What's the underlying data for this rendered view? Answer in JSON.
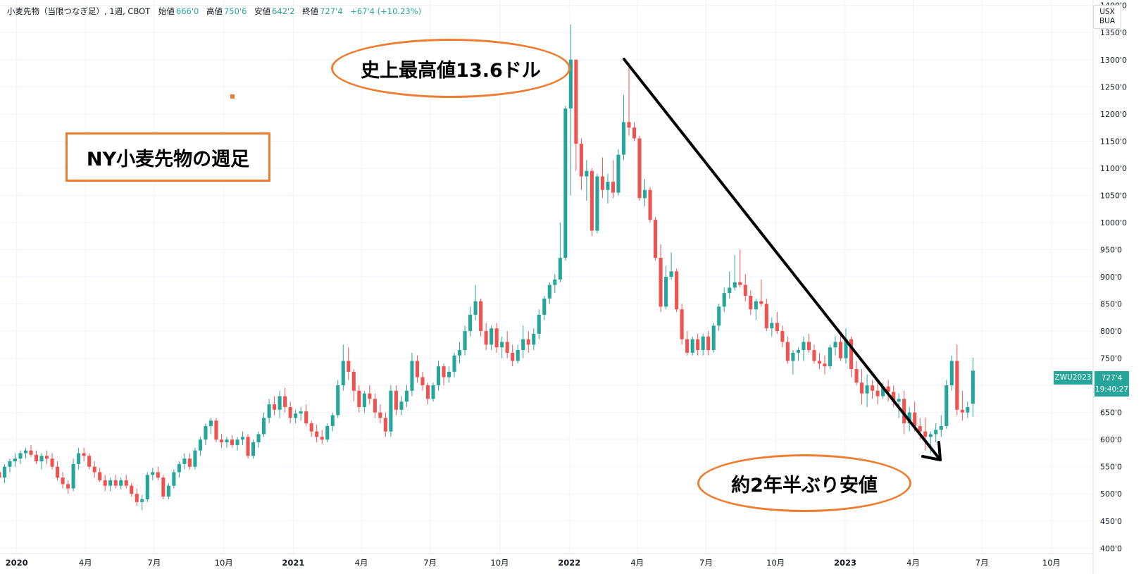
{
  "legend": {
    "title": "小麦先物（当限つなぎ足）, 1週, CBOT",
    "open_label": "始値",
    "open_value": "666'0",
    "high_label": "高値",
    "high_value": "750'6",
    "low_label": "安値",
    "low_value": "642'2",
    "close_label": "終値",
    "close_value": "727'4",
    "change": "+67'4 (+10.23%)"
  },
  "currency": {
    "line1": "USX",
    "line2": "BUA"
  },
  "annotations": {
    "box_title": "NY小麦先物の週足",
    "peak_label": "史上最高値13.6ドル",
    "low_label": "約2年半ぶり安値"
  },
  "price_tag": {
    "symbol": "ZWU2023",
    "price": "727'4",
    "countdown": "19:40:27"
  },
  "colors": {
    "up": "#26a69a",
    "down": "#ef5350",
    "accent": "#ed7d31",
    "grid": "#f0f3fa"
  },
  "chart_data": {
    "type": "candlestick",
    "y_axis": {
      "range": [
        390,
        1410
      ],
      "ticks": [
        400,
        450,
        500,
        550,
        600,
        650,
        700,
        750,
        800,
        850,
        900,
        950,
        1000,
        1050,
        1100,
        1150,
        1200,
        1250,
        1300,
        1350,
        1400
      ],
      "tick_labels": [
        "400'0",
        "450'0",
        "500'0",
        "550'0",
        "600'0",
        "650'0",
        "700'0",
        "750'0",
        "800'0",
        "850'0",
        "900'0",
        "950'0",
        "1000'0",
        "1050'0",
        "1100'0",
        "1150'0",
        "1200'0",
        "1250'0",
        "1300'0",
        "1350'0",
        "1400'0"
      ]
    },
    "x_axis": {
      "range": [
        "2019-12-10",
        "2023-11-25"
      ],
      "ticks": [
        {
          "date": "2020-01-01",
          "label": "2020",
          "bold": true
        },
        {
          "date": "2020-04-01",
          "label": "4月"
        },
        {
          "date": "2020-07-01",
          "label": "7月"
        },
        {
          "date": "2020-10-01",
          "label": "10月"
        },
        {
          "date": "2021-01-01",
          "label": "2021",
          "bold": true
        },
        {
          "date": "2021-04-01",
          "label": "4月"
        },
        {
          "date": "2021-07-01",
          "label": "7月"
        },
        {
          "date": "2021-10-01",
          "label": "10月"
        },
        {
          "date": "2022-01-01",
          "label": "2022",
          "bold": true
        },
        {
          "date": "2022-04-01",
          "label": "4月"
        },
        {
          "date": "2022-07-01",
          "label": "7月"
        },
        {
          "date": "2022-10-01",
          "label": "10月"
        },
        {
          "date": "2023-01-01",
          "label": "2023",
          "bold": true
        },
        {
          "date": "2023-04-01",
          "label": "4月"
        },
        {
          "date": "2023-07-01",
          "label": "7月"
        },
        {
          "date": "2023-10-01",
          "label": "10月"
        }
      ]
    },
    "first_week": "2019-12-09",
    "candles": [
      [
        540,
        555,
        521,
        530
      ],
      [
        530,
        555,
        520,
        550
      ],
      [
        550,
        565,
        540,
        560
      ],
      [
        560,
        575,
        550,
        565
      ],
      [
        565,
        580,
        555,
        575
      ],
      [
        575,
        585,
        565,
        580
      ],
      [
        580,
        590,
        568,
        572
      ],
      [
        572,
        580,
        555,
        560
      ],
      [
        560,
        575,
        545,
        570
      ],
      [
        570,
        580,
        555,
        565
      ],
      [
        565,
        575,
        545,
        550
      ],
      [
        550,
        560,
        525,
        530
      ],
      [
        530,
        540,
        510,
        518
      ],
      [
        518,
        525,
        500,
        510
      ],
      [
        510,
        565,
        505,
        555
      ],
      [
        555,
        585,
        545,
        575
      ],
      [
        575,
        585,
        560,
        570
      ],
      [
        570,
        575,
        545,
        550
      ],
      [
        550,
        560,
        530,
        540
      ],
      [
        540,
        548,
        522,
        525
      ],
      [
        525,
        535,
        505,
        515
      ],
      [
        515,
        530,
        505,
        525
      ],
      [
        525,
        535,
        510,
        515
      ],
      [
        515,
        530,
        508,
        525
      ],
      [
        525,
        535,
        510,
        515
      ],
      [
        515,
        520,
        495,
        500
      ],
      [
        500,
        510,
        478,
        485
      ],
      [
        485,
        498,
        470,
        490
      ],
      [
        490,
        540,
        485,
        535
      ],
      [
        535,
        548,
        525,
        540
      ],
      [
        540,
        550,
        525,
        530
      ],
      [
        530,
        535,
        490,
        495
      ],
      [
        495,
        520,
        490,
        515
      ],
      [
        515,
        545,
        510,
        540
      ],
      [
        540,
        560,
        530,
        555
      ],
      [
        555,
        575,
        545,
        565
      ],
      [
        565,
        575,
        545,
        550
      ],
      [
        550,
        585,
        545,
        580
      ],
      [
        580,
        605,
        570,
        600
      ],
      [
        600,
        630,
        590,
        625
      ],
      [
        625,
        640,
        610,
        635
      ],
      [
        635,
        640,
        595,
        600
      ],
      [
        600,
        610,
        585,
        595
      ],
      [
        595,
        605,
        585,
        600
      ],
      [
        600,
        608,
        585,
        590
      ],
      [
        590,
        605,
        580,
        600
      ],
      [
        600,
        615,
        590,
        605
      ],
      [
        605,
        610,
        565,
        570
      ],
      [
        570,
        600,
        565,
        595
      ],
      [
        595,
        615,
        585,
        610
      ],
      [
        610,
        650,
        605,
        640
      ],
      [
        640,
        675,
        630,
        665
      ],
      [
        665,
        680,
        645,
        655
      ],
      [
        655,
        690,
        640,
        680
      ],
      [
        680,
        695,
        650,
        660
      ],
      [
        660,
        670,
        630,
        640
      ],
      [
        640,
        655,
        630,
        648
      ],
      [
        648,
        660,
        635,
        652
      ],
      [
        652,
        665,
        625,
        630
      ],
      [
        630,
        635,
        605,
        615
      ],
      [
        615,
        628,
        595,
        605
      ],
      [
        605,
        618,
        592,
        600
      ],
      [
        600,
        630,
        595,
        625
      ],
      [
        625,
        650,
        615,
        645
      ],
      [
        645,
        710,
        640,
        700
      ],
      [
        700,
        775,
        690,
        745
      ],
      [
        745,
        770,
        710,
        725
      ],
      [
        725,
        730,
        670,
        690
      ],
      [
        690,
        700,
        650,
        660
      ],
      [
        660,
        690,
        650,
        685
      ],
      [
        685,
        700,
        665,
        675
      ],
      [
        675,
        685,
        640,
        650
      ],
      [
        650,
        665,
        630,
        640
      ],
      [
        640,
        650,
        605,
        615
      ],
      [
        615,
        700,
        605,
        690
      ],
      [
        690,
        700,
        645,
        655
      ],
      [
        655,
        680,
        645,
        670
      ],
      [
        670,
        700,
        660,
        690
      ],
      [
        690,
        760,
        680,
        745
      ],
      [
        745,
        755,
        705,
        715
      ],
      [
        715,
        725,
        690,
        700
      ],
      [
        700,
        705,
        665,
        675
      ],
      [
        675,
        705,
        670,
        700
      ],
      [
        700,
        745,
        690,
        735
      ],
      [
        735,
        740,
        700,
        715
      ],
      [
        715,
        735,
        705,
        725
      ],
      [
        725,
        760,
        715,
        755
      ],
      [
        755,
        780,
        740,
        765
      ],
      [
        765,
        810,
        755,
        800
      ],
      [
        800,
        845,
        790,
        830
      ],
      [
        830,
        885,
        820,
        855
      ],
      [
        855,
        860,
        790,
        800
      ],
      [
        800,
        815,
        765,
        775
      ],
      [
        775,
        810,
        765,
        805
      ],
      [
        805,
        815,
        760,
        770
      ],
      [
        770,
        790,
        750,
        780
      ],
      [
        780,
        800,
        750,
        760
      ],
      [
        760,
        775,
        735,
        745
      ],
      [
        745,
        775,
        740,
        765
      ],
      [
        765,
        810,
        750,
        785
      ],
      [
        785,
        800,
        760,
        775
      ],
      [
        775,
        805,
        765,
        795
      ],
      [
        795,
        840,
        785,
        830
      ],
      [
        830,
        865,
        820,
        860
      ],
      [
        860,
        890,
        850,
        885
      ],
      [
        885,
        905,
        870,
        895
      ],
      [
        895,
        1000,
        890,
        935
      ],
      [
        935,
        1215,
        930,
        1210
      ],
      [
        1210,
        1365,
        1050,
        1300
      ],
      [
        1300,
        1295,
        1095,
        1145
      ],
      [
        1145,
        1155,
        1060,
        1085
      ],
      [
        1085,
        1115,
        1040,
        1095
      ],
      [
        1095,
        1100,
        975,
        985
      ],
      [
        985,
        1090,
        980,
        1085
      ],
      [
        1085,
        1120,
        1045,
        1060
      ],
      [
        1060,
        1090,
        1035,
        1075
      ],
      [
        1075,
        1115,
        1045,
        1055
      ],
      [
        1055,
        1135,
        1050,
        1125
      ],
      [
        1125,
        1235,
        1115,
        1185
      ],
      [
        1185,
        1285,
        1160,
        1175
      ],
      [
        1175,
        1185,
        1150,
        1155
      ],
      [
        1155,
        1160,
        1040,
        1045
      ],
      [
        1045,
        1080,
        1030,
        1060
      ],
      [
        1060,
        1065,
        1000,
        1005
      ],
      [
        1005,
        1010,
        930,
        935
      ],
      [
        935,
        960,
        835,
        845
      ],
      [
        845,
        920,
        840,
        900
      ],
      [
        900,
        945,
        895,
        910
      ],
      [
        910,
        915,
        835,
        840
      ],
      [
        840,
        850,
        775,
        785
      ],
      [
        785,
        800,
        755,
        760
      ],
      [
        760,
        790,
        755,
        785
      ],
      [
        785,
        795,
        755,
        765
      ],
      [
        765,
        795,
        755,
        790
      ],
      [
        790,
        800,
        755,
        765
      ],
      [
        765,
        815,
        760,
        810
      ],
      [
        810,
        850,
        800,
        845
      ],
      [
        845,
        880,
        835,
        870
      ],
      [
        870,
        910,
        860,
        880
      ],
      [
        880,
        940,
        875,
        890
      ],
      [
        890,
        950,
        880,
        885
      ],
      [
        885,
        905,
        855,
        865
      ],
      [
        865,
        875,
        830,
        840
      ],
      [
        840,
        860,
        820,
        855
      ],
      [
        855,
        895,
        845,
        850
      ],
      [
        850,
        860,
        800,
        805
      ],
      [
        805,
        825,
        790,
        815
      ],
      [
        815,
        835,
        795,
        800
      ],
      [
        800,
        810,
        770,
        780
      ],
      [
        780,
        790,
        740,
        745
      ],
      [
        745,
        765,
        720,
        760
      ],
      [
        760,
        770,
        745,
        765
      ],
      [
        765,
        790,
        745,
        780
      ],
      [
        780,
        795,
        760,
        765
      ],
      [
        765,
        775,
        740,
        745
      ],
      [
        745,
        760,
        730,
        740
      ],
      [
        740,
        755,
        720,
        735
      ],
      [
        735,
        775,
        730,
        770
      ],
      [
        770,
        790,
        755,
        780
      ],
      [
        780,
        795,
        745,
        750
      ],
      [
        750,
        805,
        740,
        785
      ],
      [
        785,
        790,
        715,
        730
      ],
      [
        730,
        745,
        700,
        705
      ],
      [
        705,
        730,
        665,
        685
      ],
      [
        685,
        720,
        660,
        700
      ],
      [
        700,
        710,
        675,
        690
      ],
      [
        690,
        705,
        665,
        680
      ],
      [
        680,
        705,
        675,
        698
      ],
      [
        698,
        710,
        670,
        688
      ],
      [
        688,
        700,
        660,
        670
      ],
      [
        670,
        685,
        640,
        675
      ],
      [
        675,
        690,
        610,
        630
      ],
      [
        630,
        660,
        615,
        650
      ],
      [
        650,
        670,
        615,
        625
      ],
      [
        625,
        640,
        600,
        615
      ],
      [
        615,
        640,
        580,
        605
      ],
      [
        605,
        615,
        575,
        610
      ],
      [
        610,
        630,
        595,
        618
      ],
      [
        618,
        645,
        605,
        625
      ],
      [
        625,
        710,
        620,
        700
      ],
      [
        700,
        755,
        690,
        745
      ],
      [
        745,
        775,
        645,
        655
      ],
      [
        655,
        690,
        635,
        650
      ],
      [
        650,
        670,
        640,
        660
      ],
      [
        666,
        751,
        642,
        727
      ]
    ]
  }
}
